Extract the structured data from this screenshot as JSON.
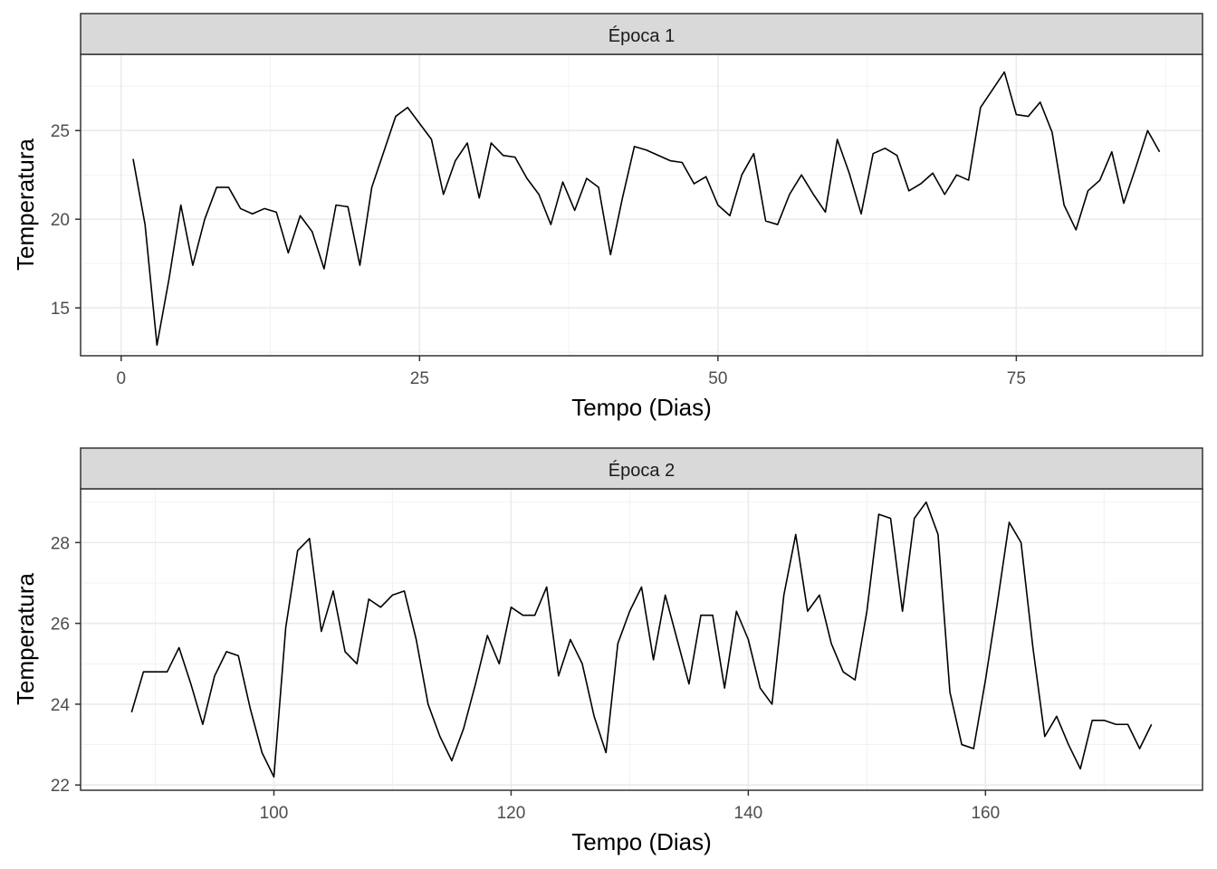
{
  "chart_data": [
    {
      "type": "line",
      "strip_label": "Época 1",
      "xlabel": "Tempo (Dias)",
      "ylabel": "Temperatura",
      "xlim": [
        -3.4,
        90.6
      ],
      "ylim": [
        12.3,
        29.3
      ],
      "x_ticks": [
        0,
        25,
        50,
        75
      ],
      "x_tick_labels": [
        "0",
        "25",
        "50",
        "75"
      ],
      "y_ticks": [
        15,
        20,
        25
      ],
      "y_tick_labels": [
        "15",
        "20",
        "25"
      ],
      "grid": true,
      "line_color": "#000000",
      "x": [
        1,
        2,
        3,
        4,
        5,
        6,
        7,
        8,
        9,
        10,
        11,
        12,
        13,
        14,
        15,
        16,
        17,
        18,
        19,
        20,
        21,
        22,
        23,
        24,
        25,
        26,
        27,
        28,
        29,
        30,
        31,
        32,
        33,
        34,
        35,
        36,
        37,
        38,
        39,
        40,
        41,
        42,
        43,
        44,
        45,
        46,
        47,
        48,
        49,
        50,
        51,
        52,
        53,
        54,
        55,
        56,
        57,
        58,
        59,
        60,
        61,
        62,
        63,
        64,
        65,
        66,
        67,
        68,
        69,
        70,
        71,
        72,
        73,
        74,
        75,
        76,
        77,
        78,
        79,
        80,
        81,
        82,
        83,
        84,
        85,
        86,
        87
      ],
      "y": [
        23.4,
        19.7,
        12.9,
        16.6,
        20.8,
        17.4,
        20.0,
        21.8,
        21.8,
        20.6,
        20.3,
        20.6,
        20.4,
        18.1,
        20.2,
        19.3,
        17.2,
        20.8,
        20.7,
        17.4,
        21.8,
        23.8,
        25.8,
        26.3,
        25.4,
        24.5,
        21.4,
        23.3,
        24.3,
        21.2,
        24.3,
        23.6,
        23.5,
        22.3,
        21.4,
        19.7,
        22.1,
        20.5,
        22.3,
        21.8,
        18.0,
        21.2,
        24.1,
        23.9,
        23.6,
        23.3,
        23.2,
        22.0,
        22.4,
        20.8,
        20.2,
        22.5,
        23.7,
        19.9,
        19.7,
        21.4,
        22.5,
        21.4,
        20.4,
        24.5,
        22.6,
        20.3,
        23.7,
        24.0,
        23.6,
        21.6,
        22.0,
        22.6,
        21.4,
        22.5,
        22.2,
        26.3,
        27.3,
        28.3,
        25.9,
        25.8,
        26.6,
        24.9,
        20.8,
        19.4,
        21.6,
        22.2,
        23.8,
        20.9,
        22.9,
        25.0,
        23.8
      ]
    },
    {
      "type": "line",
      "strip_label": "Época 2",
      "xlabel": "Tempo (Dias)",
      "ylabel": "Temperatura",
      "xlim": [
        83.7,
        178.3
      ],
      "ylim": [
        21.87,
        29.33
      ],
      "x_ticks": [
        100,
        120,
        140,
        160
      ],
      "x_tick_labels": [
        "100",
        "120",
        "140",
        "160"
      ],
      "y_ticks": [
        22,
        24,
        26,
        28
      ],
      "y_tick_labels": [
        "22",
        "24",
        "26",
        "28"
      ],
      "grid": true,
      "line_color": "#000000",
      "x": [
        88,
        89,
        90,
        91,
        92,
        93,
        94,
        95,
        96,
        97,
        98,
        99,
        100,
        101,
        102,
        103,
        104,
        105,
        106,
        107,
        108,
        109,
        110,
        111,
        112,
        113,
        114,
        115,
        116,
        117,
        118,
        119,
        120,
        121,
        122,
        123,
        124,
        125,
        126,
        127,
        128,
        129,
        130,
        131,
        132,
        133,
        134,
        135,
        136,
        137,
        138,
        139,
        140,
        141,
        142,
        143,
        144,
        145,
        146,
        147,
        148,
        149,
        150,
        151,
        152,
        153,
        154,
        155,
        156,
        157,
        158,
        159,
        160,
        161,
        162,
        163,
        164,
        165,
        166,
        167,
        168,
        169,
        170,
        171,
        172,
        173,
        174
      ],
      "y": [
        23.8,
        24.8,
        24.8,
        24.8,
        25.4,
        24.5,
        23.5,
        24.7,
        25.3,
        25.2,
        23.9,
        22.8,
        22.2,
        25.9,
        27.8,
        28.1,
        25.8,
        26.8,
        25.3,
        25.0,
        26.6,
        26.4,
        26.7,
        26.8,
        25.6,
        24.0,
        23.2,
        22.6,
        23.4,
        24.5,
        25.7,
        25.0,
        26.4,
        26.2,
        26.2,
        26.9,
        24.7,
        25.6,
        25.0,
        23.7,
        22.8,
        25.5,
        26.3,
        26.9,
        25.1,
        26.7,
        25.6,
        24.5,
        26.2,
        26.2,
        24.4,
        26.3,
        25.6,
        24.4,
        24.0,
        26.7,
        28.2,
        26.3,
        26.7,
        25.5,
        24.8,
        24.6,
        26.3,
        28.7,
        28.6,
        26.3,
        28.6,
        29.0,
        28.2,
        24.3,
        23.0,
        22.9,
        24.6,
        26.5,
        28.5,
        28.0,
        25.4,
        23.2,
        23.7,
        23.0,
        22.4,
        23.6,
        23.6,
        23.5,
        23.5,
        22.9,
        23.5
      ]
    }
  ]
}
